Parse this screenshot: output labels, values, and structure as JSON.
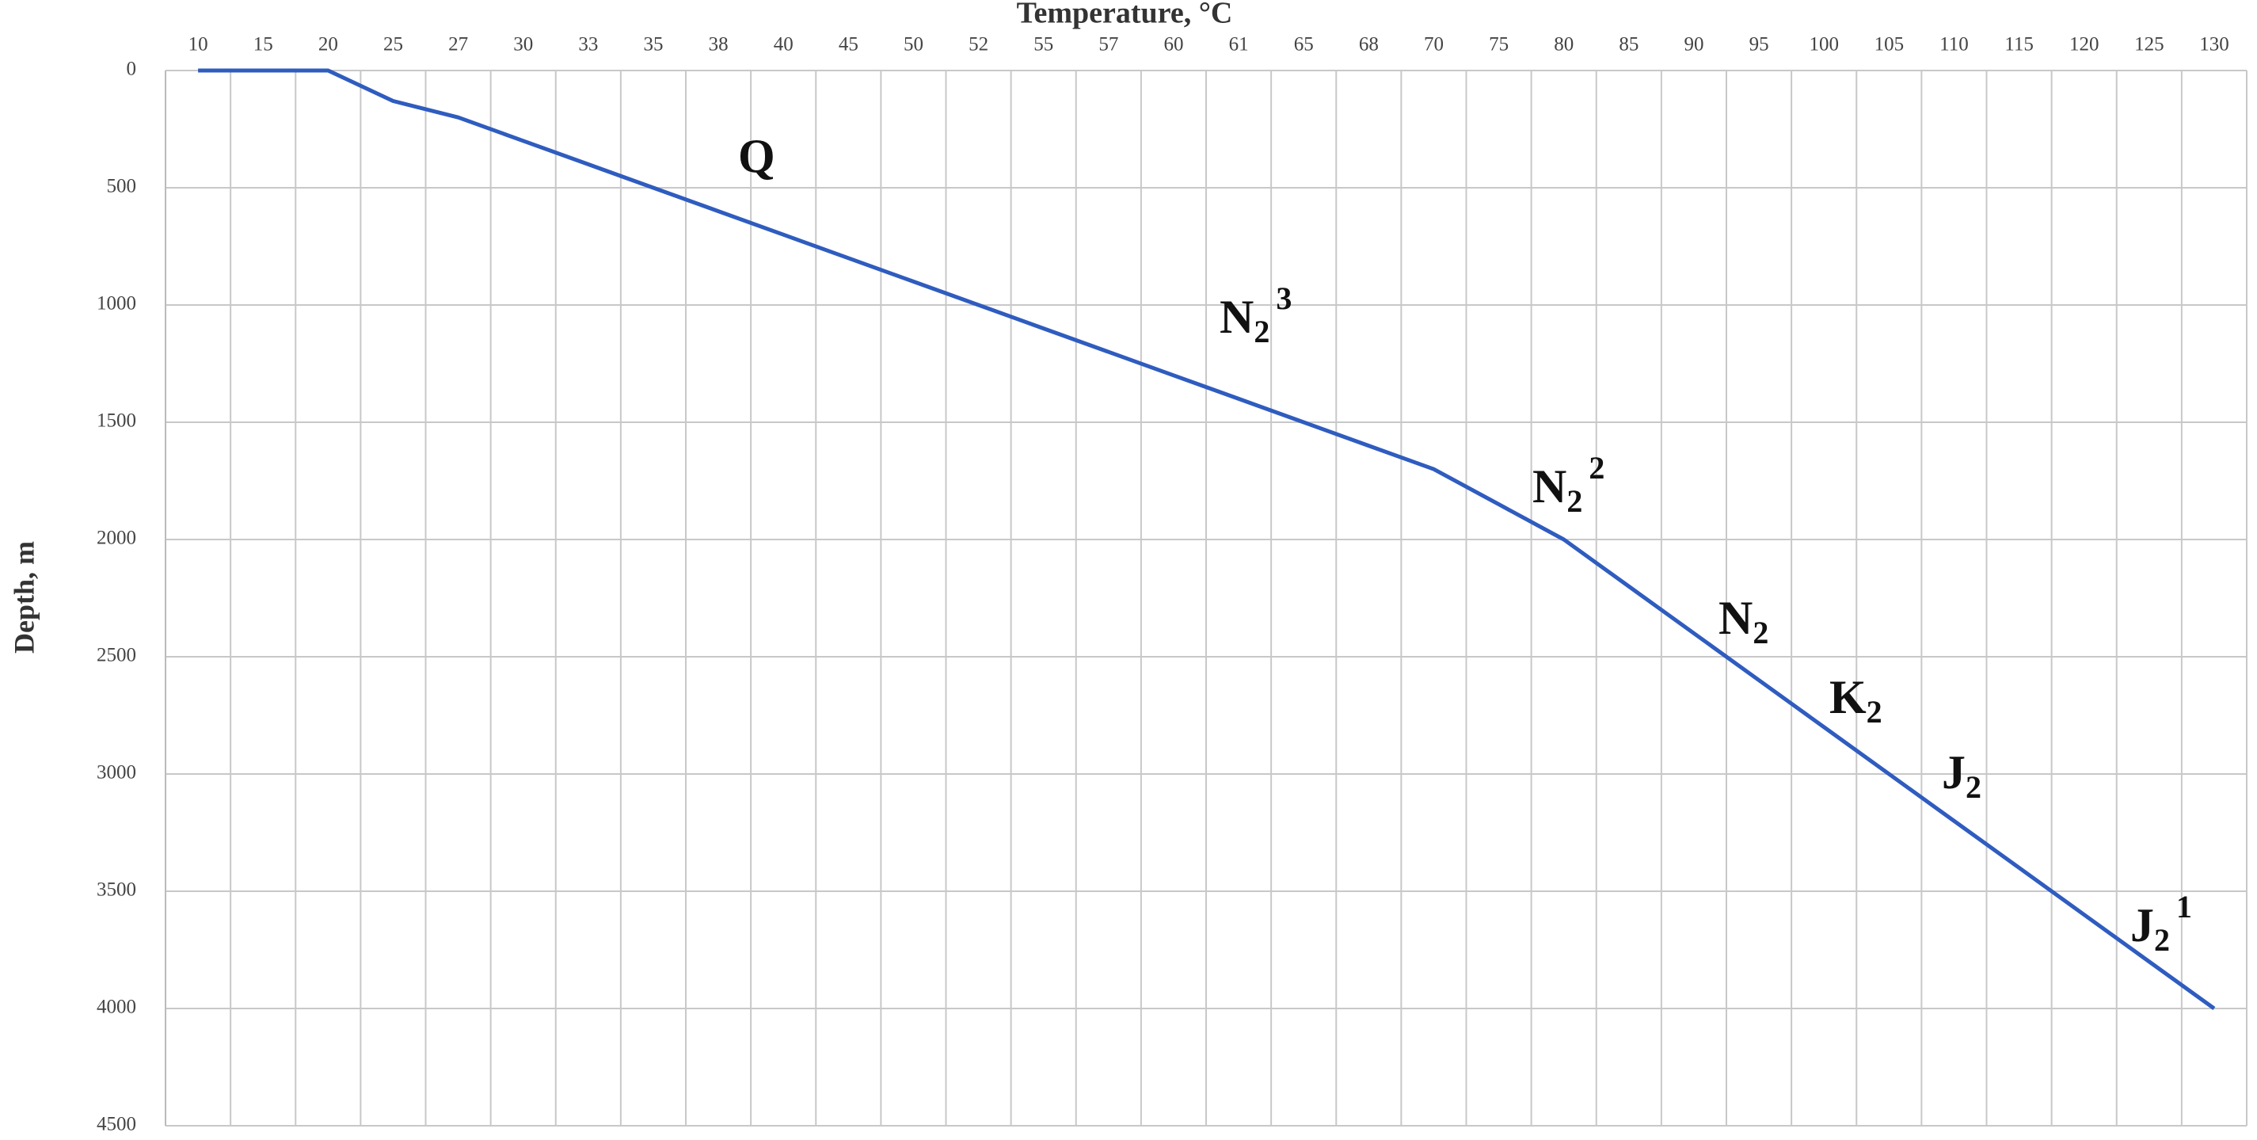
{
  "chart_data": {
    "type": "line",
    "title": "Temperature, °C",
    "y_label": "Depth, m",
    "categories": [
      "10",
      "15",
      "20",
      "25",
      "27",
      "30",
      "33",
      "35",
      "38",
      "40",
      "45",
      "50",
      "52",
      "55",
      "57",
      "60",
      "61",
      "65",
      "68",
      "70",
      "75",
      "80",
      "85",
      "90",
      "95",
      "100",
      "105",
      "110",
      "115",
      "120",
      "125",
      "130"
    ],
    "values": [
      0,
      0,
      0,
      130,
      200,
      300,
      400,
      500,
      600,
      700,
      800,
      900,
      1000,
      1100,
      1200,
      1300,
      1400,
      1500,
      1600,
      1700,
      1850,
      2000,
      2200,
      2400,
      2600,
      2800,
      3000,
      3200,
      3400,
      3600,
      3800,
      4000
    ],
    "color": "#2f5cbf",
    "ylim": [
      0,
      4500
    ],
    "yticks": [
      0,
      500,
      1000,
      1500,
      2000,
      2500,
      3000,
      3500,
      4000,
      4500
    ],
    "y_inverted": true,
    "x_axis_position": "top",
    "grid": true,
    "annotations": [
      {
        "text": "Q"
      },
      {
        "text": "N",
        "sub": "2",
        "sup": "3"
      },
      {
        "text": "N",
        "sub": "2",
        "sup": "2"
      },
      {
        "text": "N",
        "sub": "2"
      },
      {
        "text": "K",
        "sub": "2"
      },
      {
        "text": "J",
        "sub": "2"
      },
      {
        "text": "J",
        "sub": "2",
        "sup": "1"
      }
    ]
  }
}
